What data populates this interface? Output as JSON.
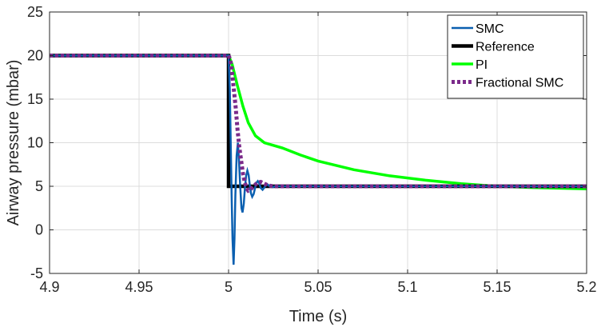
{
  "chart_data": {
    "type": "line",
    "title": "",
    "xlabel": "Time (s)",
    "ylabel": "Airway pressure (mbar)",
    "xlim": [
      4.9,
      5.2
    ],
    "ylim": [
      -5,
      25
    ],
    "xticks": [
      4.9,
      4.95,
      5.0,
      5.05,
      5.1,
      5.15,
      5.2
    ],
    "xtick_labels": [
      "4.9",
      "4.95",
      "5",
      "5.05",
      "5.1",
      "5.15",
      "5.2"
    ],
    "yticks": [
      -5,
      0,
      5,
      10,
      15,
      20,
      25
    ],
    "ytick_labels": [
      "-5",
      "0",
      "5",
      "10",
      "15",
      "20",
      "25"
    ],
    "grid": true,
    "legend_position": "top-right",
    "series": [
      {
        "name": "SMC",
        "color": "#0a5fb0",
        "style": "solid",
        "x": [
          4.9,
          5.0,
          5.0007,
          5.0012,
          5.0017,
          5.0022,
          5.0028,
          5.0033,
          5.0038,
          5.0045,
          5.0052,
          5.0058,
          5.0065,
          5.0072,
          5.0078,
          5.0085,
          5.0092,
          5.0098,
          5.0105,
          5.0112,
          5.0118,
          5.0125,
          5.0132,
          5.014,
          5.0148,
          5.0155,
          5.0163,
          5.0172,
          5.018,
          5.019,
          5.0198,
          5.0208,
          5.0218,
          5.023,
          5.0245,
          5.026,
          5.2
        ],
        "y": [
          20,
          20,
          16,
          10,
          4,
          -1,
          -4,
          -1,
          4,
          8.5,
          10,
          8,
          5,
          2.5,
          2,
          3,
          5,
          6.2,
          6.8,
          6.3,
          5.2,
          4.2,
          3.8,
          4.1,
          4.8,
          5.4,
          5.6,
          5.3,
          4.8,
          4.6,
          4.8,
          5.1,
          5.2,
          5.0,
          4.9,
          5.0,
          5.0
        ]
      },
      {
        "name": "Reference",
        "color": "#000000",
        "style": "solid",
        "x": [
          4.9,
          5.0,
          5.0,
          5.2
        ],
        "y": [
          20,
          20,
          5,
          5
        ]
      },
      {
        "name": "PI",
        "color": "#00ff00",
        "style": "solid",
        "x": [
          4.9,
          5.0,
          5.002,
          5.005,
          5.008,
          5.011,
          5.015,
          5.02,
          5.03,
          5.04,
          5.05,
          5.07,
          5.09,
          5.11,
          5.13,
          5.15,
          5.17,
          5.2
        ],
        "y": [
          20,
          20,
          19,
          16.5,
          14.2,
          12.3,
          10.8,
          10.0,
          9.4,
          8.6,
          7.9,
          6.9,
          6.2,
          5.7,
          5.3,
          5.0,
          4.85,
          4.7
        ]
      },
      {
        "name": "Fractional SMC",
        "color": "#7b2a8a",
        "style": "dashed",
        "x": [
          4.9,
          5.0,
          5.001,
          5.002,
          5.003,
          5.004,
          5.005,
          5.006,
          5.007,
          5.008,
          5.009,
          5.01,
          5.011,
          5.012,
          5.014,
          5.016,
          5.018,
          5.02,
          5.022,
          5.025,
          5.03,
          5.2
        ],
        "y": [
          20,
          20,
          19.5,
          18,
          16,
          14,
          11.5,
          9.5,
          8,
          6.5,
          5.5,
          4.8,
          4.5,
          4.6,
          5.0,
          5.4,
          5.5,
          5.3,
          5.1,
          5.0,
          5.0,
          5.0
        ]
      }
    ]
  }
}
